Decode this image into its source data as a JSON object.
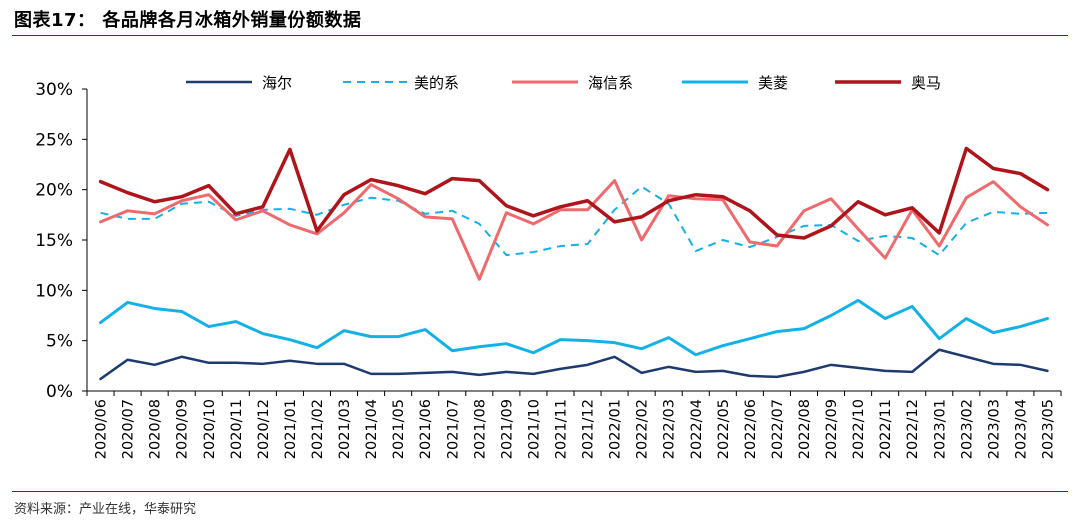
{
  "figure": {
    "title": "图表17：  各品牌各月冰箱外销量份额数据",
    "source": "资料来源：产业在线，华泰研究"
  },
  "chart_data": {
    "type": "line",
    "categories": [
      "2020/06",
      "2020/07",
      "2020/08",
      "2020/09",
      "2020/10",
      "2020/11",
      "2020/12",
      "2021/01",
      "2021/02",
      "2021/03",
      "2021/04",
      "2021/05",
      "2021/06",
      "2021/07",
      "2021/08",
      "2021/09",
      "2021/10",
      "2021/11",
      "2021/12",
      "2022/01",
      "2022/02",
      "2022/03",
      "2022/04",
      "2022/05",
      "2022/06",
      "2022/07",
      "2022/08",
      "2022/09",
      "2022/10",
      "2022/11",
      "2022/12",
      "2023/01",
      "2023/02",
      "2023/03",
      "2023/04",
      "2023/05"
    ],
    "y_ticks": [
      "0%",
      "5%",
      "10%",
      "15%",
      "20%",
      "25%",
      "30%"
    ],
    "ylim": [
      0,
      30
    ],
    "unit": "%",
    "legend_position": "top",
    "grid": false,
    "series": [
      {
        "name": "海尔",
        "color": "#1f3a6e",
        "style": "solid",
        "width": 2.5,
        "values": [
          1.2,
          3.1,
          2.6,
          3.4,
          2.8,
          2.8,
          2.7,
          3.0,
          2.7,
          2.7,
          1.7,
          1.7,
          1.8,
          1.9,
          1.6,
          1.9,
          1.7,
          2.2,
          2.6,
          3.4,
          1.8,
          2.4,
          1.9,
          2.0,
          1.5,
          1.4,
          1.9,
          2.6,
          2.3,
          2.0,
          1.9,
          4.1,
          3.4,
          2.7,
          2.6,
          2.0
        ]
      },
      {
        "name": "美的系",
        "color": "#14b1e7",
        "style": "dashed",
        "width": 2,
        "values": [
          17.7,
          17.1,
          17.1,
          18.6,
          18.8,
          17.4,
          18.0,
          18.1,
          17.5,
          18.5,
          19.2,
          18.9,
          17.6,
          17.9,
          16.6,
          13.5,
          13.8,
          14.4,
          14.6,
          18.0,
          20.3,
          18.6,
          13.9,
          15.0,
          14.3,
          15.3,
          16.4,
          16.5,
          14.9,
          15.4,
          15.2,
          13.5,
          16.7,
          17.8,
          17.6,
          17.7
        ]
      },
      {
        "name": "海信系",
        "color": "#f0696c",
        "style": "solid",
        "width": 3,
        "values": [
          16.8,
          17.9,
          17.6,
          18.9,
          19.5,
          17.0,
          17.9,
          16.5,
          15.6,
          17.7,
          20.5,
          19.1,
          17.3,
          17.1,
          11.1,
          17.7,
          16.6,
          18.0,
          18.0,
          20.9,
          15.0,
          19.4,
          19.1,
          19.0,
          14.8,
          14.4,
          17.9,
          19.1,
          16.1,
          13.2,
          18.0,
          14.4,
          19.2,
          20.8,
          18.3,
          16.5
        ]
      },
      {
        "name": "美菱",
        "color": "#14b1e7",
        "style": "solid",
        "width": 3,
        "values": [
          6.8,
          8.8,
          8.2,
          7.9,
          6.4,
          6.9,
          5.7,
          5.1,
          4.3,
          6.0,
          5.4,
          5.4,
          6.1,
          4.0,
          4.4,
          4.7,
          3.8,
          5.1,
          5.0,
          4.8,
          4.2,
          5.3,
          3.6,
          4.5,
          5.2,
          5.9,
          6.2,
          7.5,
          9.0,
          7.2,
          8.4,
          5.2,
          7.2,
          5.8,
          6.4,
          7.2
        ]
      },
      {
        "name": "奥马",
        "color": "#b0141b",
        "style": "solid",
        "width": 3.5,
        "values": [
          20.8,
          19.7,
          18.8,
          19.3,
          20.4,
          17.6,
          18.3,
          24.0,
          15.9,
          19.5,
          21.0,
          20.4,
          19.6,
          21.1,
          20.9,
          18.4,
          17.4,
          18.3,
          18.9,
          16.8,
          17.3,
          18.9,
          19.5,
          19.3,
          17.9,
          15.5,
          15.2,
          16.4,
          18.8,
          17.5,
          18.2,
          15.7,
          24.1,
          22.1,
          21.6,
          20.0
        ]
      }
    ]
  }
}
